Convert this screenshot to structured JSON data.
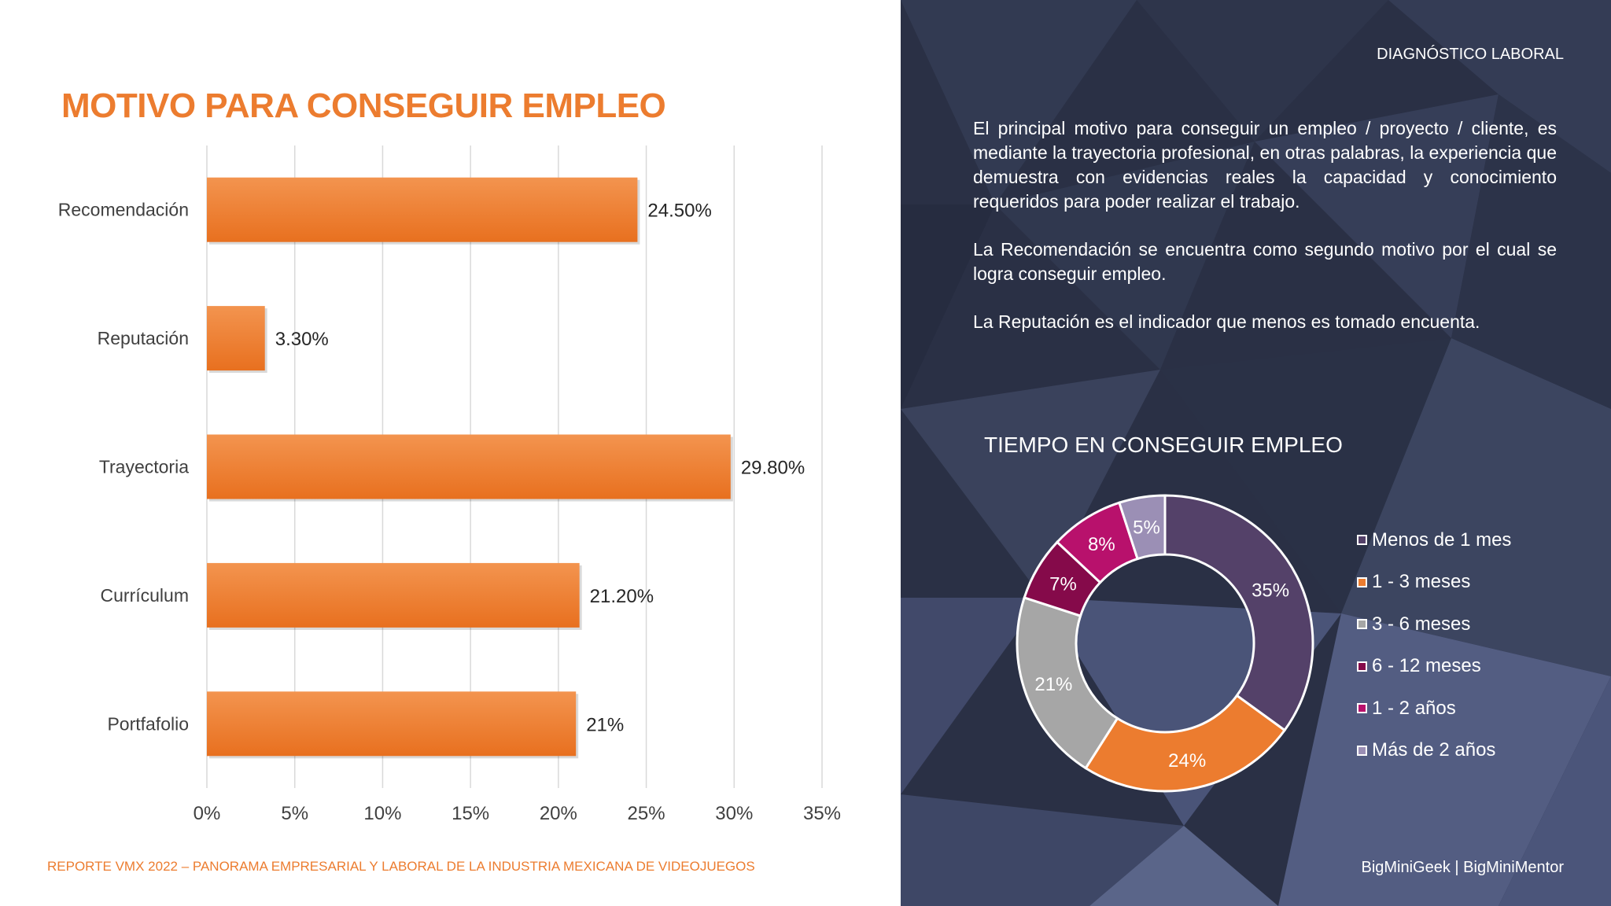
{
  "bar_section": {
    "title": "MOTIVO PARA CONSEGUIR EMPLEO",
    "footer": "REPORTE VMX 2022 – PANORAMA EMPRESARIAL Y LABORAL DE LA INDUSTRIA MEXICANA DE VIDEOJUEGOS"
  },
  "header": {
    "section_label": "DIAGNÓSTICO LABORAL"
  },
  "description": {
    "p1": "El principal motivo para conseguir un empleo / proyecto / cliente, es mediante la trayectoria profesional, en otras palabras, la experiencia que demuestra con evidencias reales la capacidad y conocimiento requeridos para poder realizar el trabajo.",
    "p2": "La Recomendación se encuentra como segundo motivo por el cual se logra conseguir empleo.",
    "p3": "La Reputación es el indicador que menos es tomado encuenta."
  },
  "donut_section": {
    "title": "TIEMPO EN CONSEGUIR EMPLEO"
  },
  "footer_right": "BigMiniGeek  |  BigMiniMentor",
  "colors": {
    "accent": "#ec7c2f",
    "panel_bg": "#2a3045"
  },
  "chart_data": [
    {
      "type": "bar",
      "orientation": "horizontal",
      "title": "MOTIVO PARA CONSEGUIR EMPLEO",
      "categories": [
        "Recomendación",
        "Reputación",
        "Trayectoria",
        "Currículum",
        "Portfafolio"
      ],
      "values": [
        24.5,
        3.3,
        29.8,
        21.2,
        21
      ],
      "data_labels": [
        "24.50%",
        "3.30%",
        "29.80%",
        "21.20%",
        "21%"
      ],
      "xlim": [
        0,
        35
      ],
      "xticks": [
        0,
        5,
        10,
        15,
        20,
        25,
        30,
        35
      ],
      "xtick_labels": [
        "0%",
        "5%",
        "10%",
        "15%",
        "20%",
        "25%",
        "30%",
        "35%"
      ],
      "grid": true,
      "color": "#ec7c2f"
    },
    {
      "type": "pie",
      "donut": true,
      "title": "TIEMPO EN CONSEGUIR EMPLEO",
      "labels": [
        "Menos de 1 mes",
        "1 - 3 meses",
        "3 - 6 meses",
        "6 - 12 meses",
        "1 - 2 años",
        "Más de 2 años"
      ],
      "values": [
        35,
        24,
        21,
        7,
        8,
        5
      ],
      "data_labels": [
        "35%",
        "24%",
        "21%",
        "7%",
        "8%",
        "5%"
      ],
      "colors": [
        "#544169",
        "#ec7c2f",
        "#a6a6a6",
        "#850a4a",
        "#b8116c",
        "#9b8fb5"
      ],
      "legend_position": "right"
    }
  ]
}
